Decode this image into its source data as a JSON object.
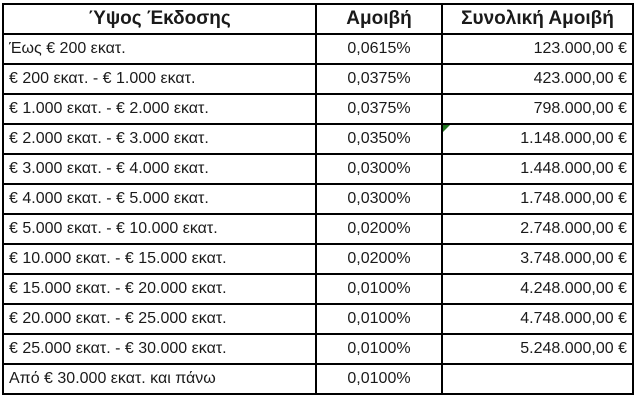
{
  "chart_data": {
    "type": "table",
    "title": "",
    "columns": [
      "Ύψος Έκδοσης",
      "Αμοιβή",
      "Συνολική Αμοιβή"
    ],
    "rows": [
      [
        "Έως € 200 εκατ.",
        "0,0615%",
        "123.000,00 €"
      ],
      [
        "€ 200 εκατ. - € 1.000 εκατ.",
        "0,0375%",
        "423.000,00 €"
      ],
      [
        "€ 1.000 εκατ. - € 2.000 εκατ.",
        "0,0375%",
        "798.000,00 €"
      ],
      [
        "€ 2.000 εκατ. - € 3.000 εκατ.",
        "0,0350%",
        "1.148.000,00 €"
      ],
      [
        "€ 3.000 εκατ. - € 4.000 εκατ.",
        "0,0300%",
        "1.448.000,00 €"
      ],
      [
        "€ 4.000 εκατ. - € 5.000 εκατ.",
        "0,0300%",
        "1.748.000,00 €"
      ],
      [
        "€ 5.000 εκατ. - € 10.000 εκατ.",
        "0,0200%",
        "2.748.000,00 €"
      ],
      [
        "€ 10.000 εκατ. - € 15.000 εκατ.",
        "0,0200%",
        "3.748.000,00 €"
      ],
      [
        "€ 15.000 εκατ. - € 20.000 εκατ.",
        "0,0100%",
        "4.248.000,00 €"
      ],
      [
        "€ 20.000 εκατ. - € 25.000 εκατ.",
        "0,0100%",
        "4.748.000,00 €"
      ],
      [
        "€ 25.000 εκατ. - € 30.000 εκατ.",
        "0,0100%",
        "5.248.000,00 €"
      ],
      [
        "Από € 30.000 εκατ. και πάνω",
        "0,0100%",
        ""
      ]
    ],
    "fee_percent_values": [
      0.0615,
      0.0375,
      0.0375,
      0.035,
      0.03,
      0.03,
      0.02,
      0.02,
      0.01,
      0.01,
      0.01,
      0.01
    ],
    "total_fee_eur_values": [
      123000,
      423000,
      798000,
      1148000,
      1448000,
      1748000,
      2748000,
      3748000,
      4248000,
      4748000,
      5248000,
      null
    ],
    "layout": {
      "column_alignments": [
        "left",
        "center",
        "right"
      ],
      "header_alignment": "center",
      "grid": "all-borders"
    }
  },
  "error_marker": {
    "row_index": 3,
    "col_index": 2,
    "color": "#217821",
    "meaning": "spreadsheet cell error indicator triangle"
  },
  "colors": {
    "background": "#ffffff",
    "grid_border": "#000000",
    "text": "#1a1a1a",
    "error_triangle": "#217821"
  }
}
